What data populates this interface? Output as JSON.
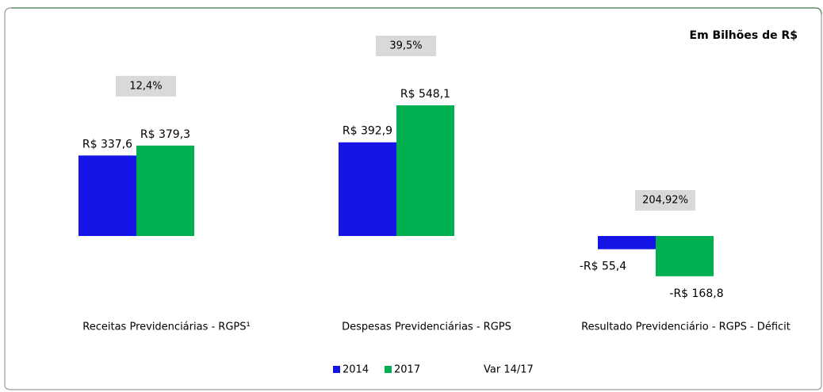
{
  "chart_data": {
    "type": "bar",
    "unit_label": "Em Bilhões de R$",
    "categories": [
      "Receitas Previdenciárias - RGPS¹",
      "Despesas Previdenciárias  - RGPS",
      "Resultado Previdenciário - RGPS - Déficit"
    ],
    "series": [
      {
        "name": "2014",
        "color": "#1414e6",
        "values": [
          337.6,
          392.9,
          -55.4
        ],
        "value_labels": [
          "R$ 337,6",
          "R$ 392,9",
          "-R$ 55,4"
        ]
      },
      {
        "name": "2017",
        "color": "#00b050",
        "values": [
          379.3,
          548.1,
          -168.8
        ],
        "value_labels": [
          "R$ 379,3",
          "R$ 548,1",
          "-R$ 168,8"
        ]
      },
      {
        "name": "Var 14/17",
        "values": [
          12.4,
          39.5,
          204.92
        ],
        "value_labels": [
          "12,4%",
          "39,5%",
          "204,92%"
        ]
      }
    ],
    "legend": "bottom"
  }
}
